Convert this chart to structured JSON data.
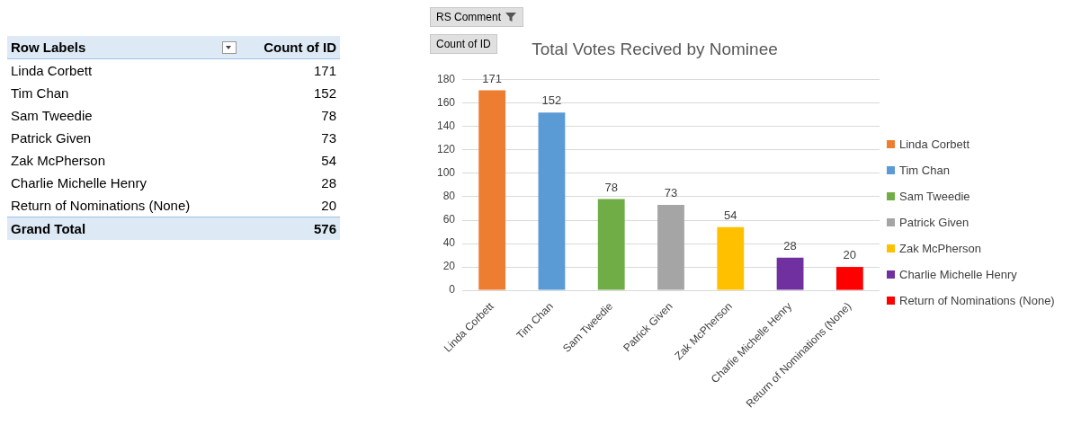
{
  "chart_data": [
    {
      "type": "other",
      "categories": [
        "Linda Corbett",
        "Tim Chan",
        "Sam Tweedie",
        "Patrick Given",
        "Zak McPherson",
        "Charlie Michelle Henry",
        "Return of Nominations (None)"
      ],
      "values": [
        171,
        152,
        78,
        73,
        54,
        28,
        20
      ],
      "data_labels": true,
      "annotations": [
        "Row Labels",
        "Count of ID",
        "Grand Total",
        "576"
      ]
    },
    {
      "type": "bar",
      "title": "Total Votes Recived by Nominee",
      "categories": [
        "Linda Corbett",
        "Tim Chan",
        "Sam Tweedie",
        "Patrick Given",
        "Zak McPherson",
        "Charlie Michelle Henry",
        "Return of Nominations (None)"
      ],
      "series": [
        {
          "name": "Linda Corbett",
          "color": "#ed7d31",
          "values": [
            171,
            null,
            null,
            null,
            null,
            null,
            null
          ]
        },
        {
          "name": "Tim Chan",
          "color": "#5b9bd5",
          "values": [
            null,
            152,
            null,
            null,
            null,
            null,
            null
          ]
        },
        {
          "name": "Sam Tweedie",
          "color": "#70ad47",
          "values": [
            null,
            null,
            78,
            null,
            null,
            null,
            null
          ]
        },
        {
          "name": "Patrick Given",
          "color": "#a5a5a5",
          "values": [
            null,
            null,
            null,
            73,
            null,
            null,
            null
          ]
        },
        {
          "name": "Zak McPherson",
          "color": "#ffc000",
          "values": [
            null,
            null,
            null,
            null,
            54,
            null,
            null
          ]
        },
        {
          "name": "Charlie Michelle Henry",
          "color": "#7030a0",
          "values": [
            null,
            null,
            null,
            null,
            null,
            28,
            null
          ]
        },
        {
          "name": "Return of Nominations (None)",
          "color": "#ff0000",
          "values": [
            null,
            null,
            null,
            null,
            null,
            null,
            20
          ]
        }
      ],
      "ylim": [
        0,
        180
      ],
      "yticks": [
        0,
        20,
        40,
        60,
        80,
        100,
        120,
        140,
        160,
        180
      ],
      "grid": "y",
      "legend": "right",
      "data_labels": true,
      "annotations": [
        "RS Comment",
        "Count of ID"
      ]
    }
  ]
}
